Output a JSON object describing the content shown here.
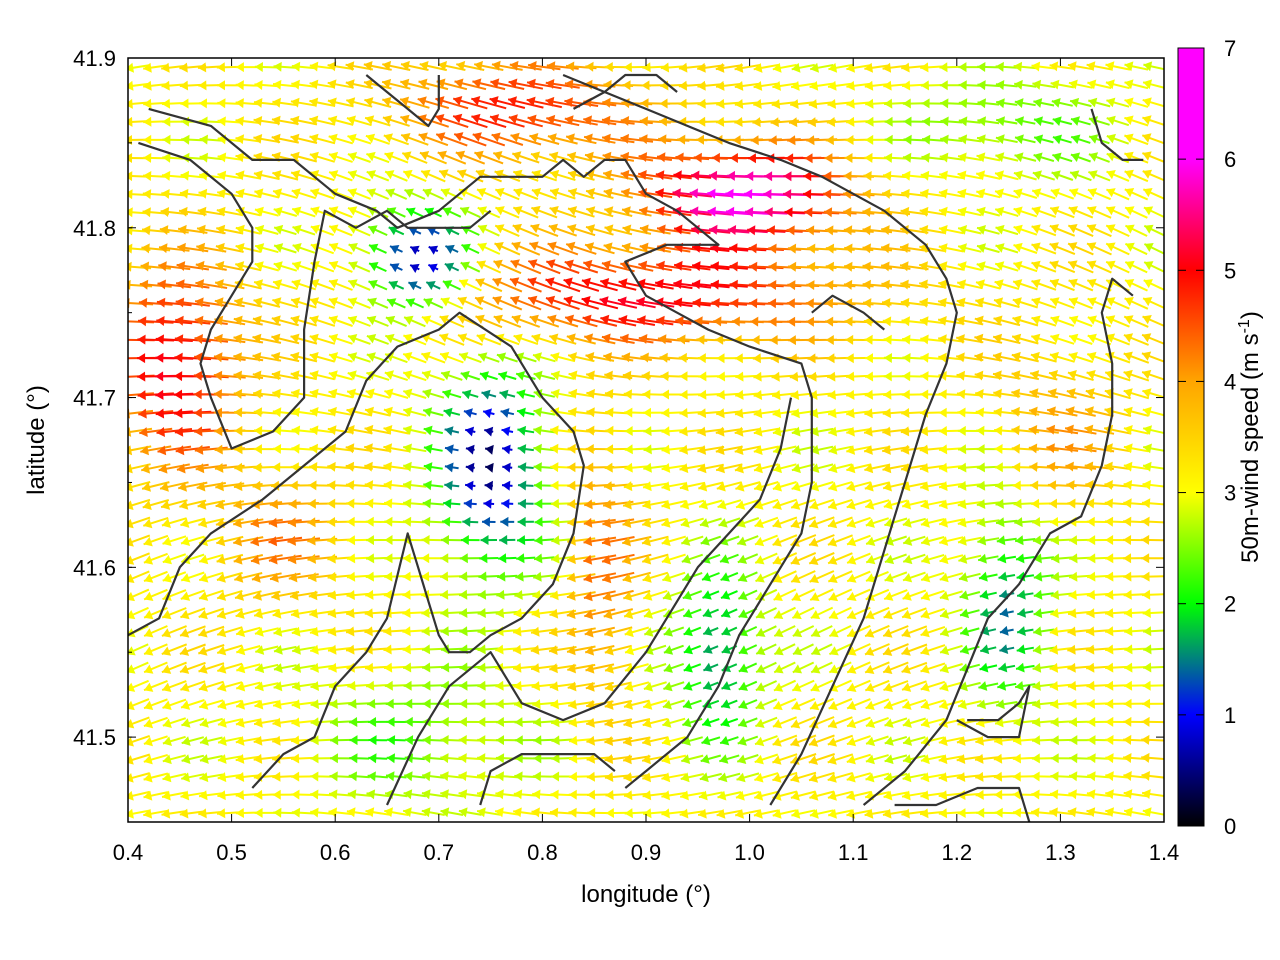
{
  "chart_data": {
    "type": "vector-field",
    "xlabel": "longitude (°)",
    "ylabel": "latitude (°)",
    "xlim": [
      0.4,
      1.4
    ],
    "ylim": [
      41.45,
      41.9
    ],
    "xticks": [
      "0.4",
      "0.5",
      "0.6",
      "0.7",
      "0.8",
      "0.9",
      "1.0",
      "1.1",
      "1.2",
      "1.3",
      "1.4"
    ],
    "yticks": [
      "41.5",
      "41.6",
      "41.7",
      "41.8",
      "41.9"
    ],
    "colorbar": {
      "label_main": "50m-wind speed (m s",
      "label_sup": "-1",
      "label_end": ")",
      "range": [
        0,
        7
      ],
      "ticks": [
        "0",
        "1",
        "2",
        "3",
        "4",
        "5",
        "6",
        "7"
      ],
      "colors": [
        "#000000",
        "#0000ff",
        "#00ff00",
        "#ffff00",
        "#ffa500",
        "#ff0000",
        "#ff00ff"
      ]
    },
    "dominant_direction": "westward (winds from the east)",
    "grid": false,
    "contour_lines": [
      [
        [
          0.42,
          41.87
        ],
        [
          0.48,
          41.86
        ],
        [
          0.52,
          41.84
        ],
        [
          0.56,
          41.84
        ],
        [
          0.6,
          41.82
        ],
        [
          0.64,
          41.81
        ],
        [
          0.66,
          41.8
        ],
        [
          0.7,
          41.81
        ],
        [
          0.74,
          41.83
        ],
        [
          0.78,
          41.83
        ],
        [
          0.8,
          41.83
        ],
        [
          0.82,
          41.84
        ],
        [
          0.84,
          41.83
        ],
        [
          0.86,
          41.84
        ],
        [
          0.88,
          41.84
        ],
        [
          0.9,
          41.82
        ],
        [
          0.93,
          41.81
        ],
        [
          0.95,
          41.8
        ],
        [
          0.97,
          41.79
        ],
        [
          0.92,
          41.79
        ],
        [
          0.88,
          41.78
        ],
        [
          0.9,
          41.76
        ],
        [
          0.93,
          41.75
        ],
        [
          0.96,
          41.74
        ],
        [
          1.0,
          41.73
        ],
        [
          1.05,
          41.72
        ],
        [
          1.06,
          41.7
        ],
        [
          1.06,
          41.65
        ],
        [
          1.05,
          41.62
        ],
        [
          1.02,
          41.59
        ],
        [
          0.99,
          41.56
        ],
        [
          0.97,
          41.53
        ],
        [
          0.94,
          41.5
        ],
        [
          0.9,
          41.48
        ],
        [
          0.88,
          41.47
        ]
      ],
      [
        [
          0.41,
          41.85
        ],
        [
          0.46,
          41.84
        ],
        [
          0.5,
          41.82
        ],
        [
          0.52,
          41.8
        ],
        [
          0.52,
          41.78
        ],
        [
          0.5,
          41.76
        ],
        [
          0.48,
          41.74
        ],
        [
          0.47,
          41.72
        ],
        [
          0.48,
          41.7
        ],
        [
          0.5,
          41.67
        ],
        [
          0.54,
          41.68
        ],
        [
          0.57,
          41.7
        ],
        [
          0.57,
          41.74
        ],
        [
          0.58,
          41.78
        ],
        [
          0.59,
          41.81
        ],
        [
          0.62,
          41.8
        ],
        [
          0.65,
          41.81
        ],
        [
          0.67,
          41.8
        ],
        [
          0.7,
          41.8
        ],
        [
          0.73,
          41.8
        ],
        [
          0.75,
          41.81
        ]
      ],
      [
        [
          0.4,
          41.56
        ],
        [
          0.43,
          41.57
        ],
        [
          0.45,
          41.6
        ],
        [
          0.48,
          41.62
        ],
        [
          0.53,
          41.64
        ],
        [
          0.57,
          41.66
        ],
        [
          0.61,
          41.68
        ],
        [
          0.63,
          41.71
        ],
        [
          0.66,
          41.73
        ],
        [
          0.7,
          41.74
        ],
        [
          0.72,
          41.75
        ],
        [
          0.77,
          41.73
        ],
        [
          0.8,
          41.7
        ],
        [
          0.83,
          41.68
        ],
        [
          0.84,
          41.66
        ],
        [
          0.83,
          41.62
        ],
        [
          0.81,
          41.59
        ],
        [
          0.78,
          41.57
        ],
        [
          0.75,
          41.56
        ],
        [
          0.73,
          41.55
        ],
        [
          0.71,
          41.55
        ],
        [
          0.7,
          41.56
        ],
        [
          0.69,
          41.58
        ],
        [
          0.68,
          41.6
        ],
        [
          0.67,
          41.62
        ],
        [
          0.65,
          41.57
        ],
        [
          0.63,
          41.55
        ],
        [
          0.6,
          41.53
        ],
        [
          0.58,
          41.5
        ],
        [
          0.55,
          41.49
        ],
        [
          0.52,
          41.47
        ]
      ],
      [
        [
          0.65,
          41.46
        ],
        [
          0.68,
          41.5
        ],
        [
          0.71,
          41.53
        ],
        [
          0.75,
          41.55
        ],
        [
          0.78,
          41.52
        ],
        [
          0.82,
          41.51
        ],
        [
          0.86,
          41.52
        ],
        [
          0.9,
          41.55
        ],
        [
          0.93,
          41.58
        ],
        [
          0.95,
          41.6
        ],
        [
          0.98,
          41.62
        ],
        [
          1.01,
          41.64
        ],
        [
          1.03,
          41.67
        ],
        [
          1.04,
          41.7
        ]
      ],
      [
        [
          0.74,
          41.46
        ],
        [
          0.75,
          41.48
        ],
        [
          0.78,
          41.49
        ],
        [
          0.82,
          41.49
        ],
        [
          0.85,
          41.49
        ],
        [
          0.87,
          41.48
        ]
      ],
      [
        [
          1.02,
          41.46
        ],
        [
          1.05,
          41.49
        ],
        [
          1.08,
          41.53
        ],
        [
          1.11,
          41.57
        ],
        [
          1.13,
          41.61
        ],
        [
          1.15,
          41.65
        ],
        [
          1.17,
          41.69
        ],
        [
          1.19,
          41.72
        ],
        [
          1.2,
          41.75
        ],
        [
          1.19,
          41.77
        ],
        [
          1.17,
          41.79
        ],
        [
          1.13,
          41.81
        ],
        [
          1.1,
          41.82
        ],
        [
          1.07,
          41.83
        ],
        [
          1.03,
          41.84
        ],
        [
          0.98,
          41.85
        ],
        [
          0.94,
          41.86
        ],
        [
          0.9,
          41.87
        ],
        [
          0.86,
          41.88
        ],
        [
          0.82,
          41.89
        ]
      ],
      [
        [
          1.11,
          41.46
        ],
        [
          1.15,
          41.48
        ],
        [
          1.19,
          41.51
        ],
        [
          1.21,
          41.54
        ],
        [
          1.23,
          41.57
        ],
        [
          1.26,
          41.59
        ],
        [
          1.29,
          41.62
        ],
        [
          1.32,
          41.63
        ],
        [
          1.34,
          41.66
        ],
        [
          1.35,
          41.69
        ],
        [
          1.35,
          41.72
        ],
        [
          1.34,
          41.75
        ],
        [
          1.35,
          41.77
        ],
        [
          1.37,
          41.76
        ]
      ],
      [
        [
          1.21,
          41.51
        ],
        [
          1.24,
          41.51
        ],
        [
          1.26,
          41.52
        ],
        [
          1.27,
          41.53
        ],
        [
          1.26,
          41.5
        ],
        [
          1.23,
          41.5
        ],
        [
          1.2,
          41.51
        ]
      ],
      [
        [
          1.14,
          41.46
        ],
        [
          1.18,
          41.46
        ],
        [
          1.22,
          41.47
        ],
        [
          1.26,
          41.47
        ],
        [
          1.27,
          41.45
        ]
      ],
      [
        [
          1.33,
          41.87
        ],
        [
          1.34,
          41.85
        ],
        [
          1.36,
          41.84
        ],
        [
          1.38,
          41.84
        ]
      ],
      [
        [
          0.63,
          41.89
        ],
        [
          0.65,
          41.88
        ],
        [
          0.67,
          41.87
        ],
        [
          0.69,
          41.86
        ],
        [
          0.7,
          41.87
        ],
        [
          0.7,
          41.89
        ]
      ],
      [
        [
          0.83,
          41.87
        ],
        [
          0.86,
          41.88
        ],
        [
          0.88,
          41.89
        ],
        [
          0.91,
          41.89
        ],
        [
          0.93,
          41.88
        ]
      ],
      [
        [
          1.06,
          41.75
        ],
        [
          1.08,
          41.76
        ],
        [
          1.11,
          41.75
        ],
        [
          1.13,
          41.74
        ]
      ]
    ]
  }
}
